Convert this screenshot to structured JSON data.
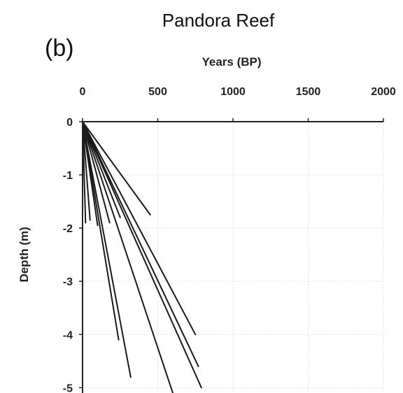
{
  "chart_data": {
    "type": "line",
    "title": "Pandora Reef",
    "panel_label": "(b)",
    "xlabel": "Years (BP)",
    "ylabel": "Depth (m)",
    "x_axis_position": "top",
    "xlim": [
      0,
      2000
    ],
    "ylim": [
      -5.1,
      0
    ],
    "x_ticks": [
      0,
      500,
      1000,
      1500,
      2000
    ],
    "y_ticks": [
      0,
      -1,
      -2,
      -3,
      -4,
      -5
    ],
    "x_tick_labels": [
      "0",
      "500",
      "1000",
      "1500",
      "2000"
    ],
    "y_tick_labels": [
      "0",
      "-1",
      "-2",
      "-3",
      "-4",
      "-5"
    ],
    "grid": true,
    "line_color": "#1a1a1a",
    "series": [
      {
        "x": [
          0,
          450
        ],
        "y": [
          0,
          -1.75
        ]
      },
      {
        "x": [
          0,
          250
        ],
        "y": [
          0,
          -1.8
        ]
      },
      {
        "x": [
          0,
          180
        ],
        "y": [
          0,
          -1.9
        ]
      },
      {
        "x": [
          0,
          100
        ],
        "y": [
          0,
          -1.95
        ]
      },
      {
        "x": [
          0,
          50
        ],
        "y": [
          0,
          -1.85
        ]
      },
      {
        "x": [
          0,
          20
        ],
        "y": [
          0,
          -1.9
        ]
      },
      {
        "x": [
          0,
          750
        ],
        "y": [
          0,
          -4.0
        ]
      },
      {
        "x": [
          0,
          770
        ],
        "y": [
          0,
          -4.6
        ]
      },
      {
        "x": [
          0,
          790
        ],
        "y": [
          0,
          -5.0
        ]
      },
      {
        "x": [
          0,
          320
        ],
        "y": [
          0,
          -4.8
        ]
      },
      {
        "x": [
          0,
          240
        ],
        "y": [
          0,
          -4.1
        ]
      },
      {
        "x": [
          0,
          600
        ],
        "y": [
          0,
          -5.1
        ]
      }
    ]
  }
}
